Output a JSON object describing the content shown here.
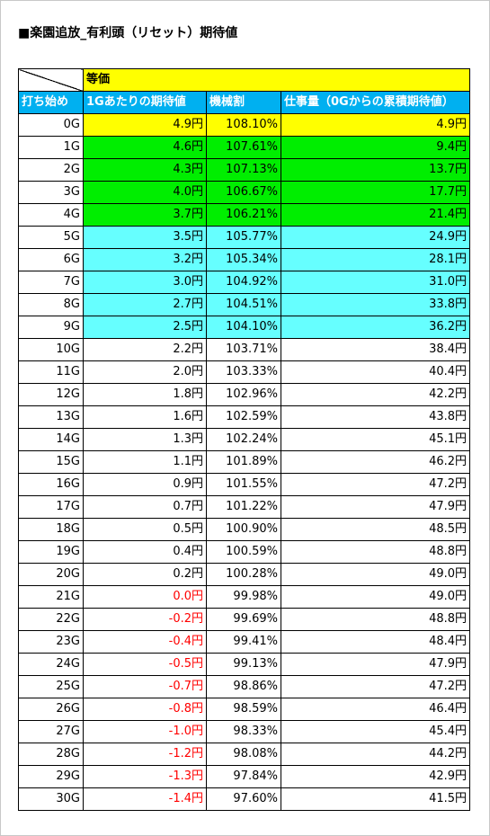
{
  "title": "■楽園追放_有利頭（リセット）期待値",
  "table": {
    "group_header": "等価",
    "headers": {
      "games": "打ち始め",
      "per_game": "1Gあたりの期待値",
      "payout": "機械割",
      "cumulative": "仕事量（0Gからの累積期待値）"
    },
    "rows": [
      {
        "g": "0G",
        "ev": "4.9円",
        "rate": "108.10%",
        "work": "4.9円",
        "hl": "yellow"
      },
      {
        "g": "1G",
        "ev": "4.6円",
        "rate": "107.61%",
        "work": "9.4円",
        "hl": "green"
      },
      {
        "g": "2G",
        "ev": "4.3円",
        "rate": "107.13%",
        "work": "13.7円",
        "hl": "green"
      },
      {
        "g": "3G",
        "ev": "4.0円",
        "rate": "106.67%",
        "work": "17.7円",
        "hl": "green"
      },
      {
        "g": "4G",
        "ev": "3.7円",
        "rate": "106.21%",
        "work": "21.4円",
        "hl": "green"
      },
      {
        "g": "5G",
        "ev": "3.5円",
        "rate": "105.77%",
        "work": "24.9円",
        "hl": "cyan"
      },
      {
        "g": "6G",
        "ev": "3.2円",
        "rate": "105.34%",
        "work": "28.1円",
        "hl": "cyan"
      },
      {
        "g": "7G",
        "ev": "3.0円",
        "rate": "104.92%",
        "work": "31.0円",
        "hl": "cyan"
      },
      {
        "g": "8G",
        "ev": "2.7円",
        "rate": "104.51%",
        "work": "33.8円",
        "hl": "cyan"
      },
      {
        "g": "9G",
        "ev": "2.5円",
        "rate": "104.10%",
        "work": "36.2円",
        "hl": "cyan"
      },
      {
        "g": "10G",
        "ev": "2.2円",
        "rate": "103.71%",
        "work": "38.4円",
        "hl": "none"
      },
      {
        "g": "11G",
        "ev": "2.0円",
        "rate": "103.33%",
        "work": "40.4円",
        "hl": "none"
      },
      {
        "g": "12G",
        "ev": "1.8円",
        "rate": "102.96%",
        "work": "42.2円",
        "hl": "none"
      },
      {
        "g": "13G",
        "ev": "1.6円",
        "rate": "102.59%",
        "work": "43.8円",
        "hl": "none"
      },
      {
        "g": "14G",
        "ev": "1.3円",
        "rate": "102.24%",
        "work": "45.1円",
        "hl": "none"
      },
      {
        "g": "15G",
        "ev": "1.1円",
        "rate": "101.89%",
        "work": "46.2円",
        "hl": "none"
      },
      {
        "g": "16G",
        "ev": "0.9円",
        "rate": "101.55%",
        "work": "47.2円",
        "hl": "none"
      },
      {
        "g": "17G",
        "ev": "0.7円",
        "rate": "101.22%",
        "work": "47.9円",
        "hl": "none"
      },
      {
        "g": "18G",
        "ev": "0.5円",
        "rate": "100.90%",
        "work": "48.5円",
        "hl": "none"
      },
      {
        "g": "19G",
        "ev": "0.4円",
        "rate": "100.59%",
        "work": "48.8円",
        "hl": "none"
      },
      {
        "g": "20G",
        "ev": "0.2円",
        "rate": "100.28%",
        "work": "49.0円",
        "hl": "none"
      },
      {
        "g": "21G",
        "ev": "0.0円",
        "rate": "99.98%",
        "work": "49.0円",
        "hl": "none",
        "neg": true
      },
      {
        "g": "22G",
        "ev": "-0.2円",
        "rate": "99.69%",
        "work": "48.8円",
        "hl": "none",
        "neg": true
      },
      {
        "g": "23G",
        "ev": "-0.4円",
        "rate": "99.41%",
        "work": "48.4円",
        "hl": "none",
        "neg": true
      },
      {
        "g": "24G",
        "ev": "-0.5円",
        "rate": "99.13%",
        "work": "47.9円",
        "hl": "none",
        "neg": true
      },
      {
        "g": "25G",
        "ev": "-0.7円",
        "rate": "98.86%",
        "work": "47.2円",
        "hl": "none",
        "neg": true
      },
      {
        "g": "26G",
        "ev": "-0.8円",
        "rate": "98.59%",
        "work": "46.4円",
        "hl": "none",
        "neg": true
      },
      {
        "g": "27G",
        "ev": "-1.0円",
        "rate": "98.33%",
        "work": "45.4円",
        "hl": "none",
        "neg": true
      },
      {
        "g": "28G",
        "ev": "-1.2円",
        "rate": "98.08%",
        "work": "44.2円",
        "hl": "none",
        "neg": true
      },
      {
        "g": "29G",
        "ev": "-1.3円",
        "rate": "97.84%",
        "work": "42.9円",
        "hl": "none",
        "neg": true
      },
      {
        "g": "30G",
        "ev": "-1.4円",
        "rate": "97.60%",
        "work": "41.5円",
        "hl": "none",
        "neg": true
      }
    ]
  },
  "colors": {
    "yellow": "#ffff00",
    "green": "#00ee00",
    "cyan": "#66ffff",
    "header_blue": "#00b0f0",
    "negative": "#ff0000"
  }
}
